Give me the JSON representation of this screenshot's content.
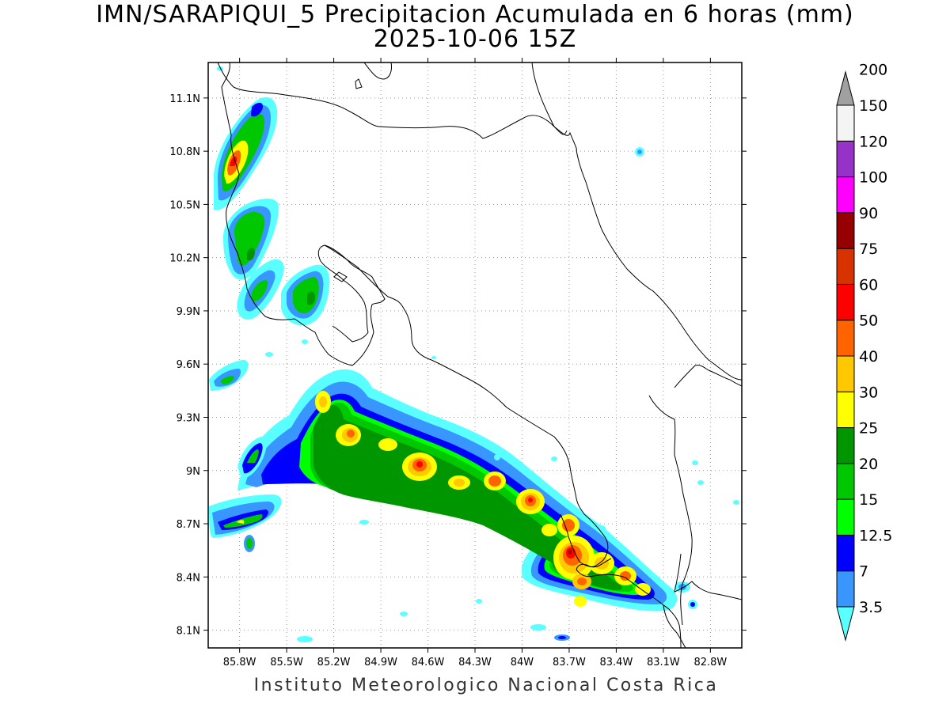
{
  "title": "IMN/SARAPIQUI_5 Precipitacion Acumulada en 6 horas (mm)",
  "date": "2025-10-06 15Z",
  "footer": "Instituto Meteorologico Nacional Costa Rica",
  "map": {
    "lon_range": [
      -86.0,
      -82.6
    ],
    "lat_range": [
      8.0,
      11.3
    ],
    "lat_ticks": [
      "11.1N",
      "10.8N",
      "10.5N",
      "10.2N",
      "9.9N",
      "9.6N",
      "9.3N",
      "9N",
      "8.7N",
      "8.4N",
      "8.1N"
    ],
    "lat_tick_values": [
      11.1,
      10.8,
      10.5,
      10.2,
      9.9,
      9.6,
      9.3,
      9.0,
      8.7,
      8.4,
      8.1
    ],
    "lon_ticks": [
      "85.8W",
      "85.5W",
      "85.2W",
      "84.9W",
      "84.6W",
      "84.3W",
      "84W",
      "83.7W",
      "83.4W",
      "83.1W",
      "82.8W"
    ],
    "lon_tick_values": [
      -85.8,
      -85.5,
      -85.2,
      -84.9,
      -84.6,
      -84.3,
      -84.0,
      -83.7,
      -83.4,
      -83.1,
      -82.8
    ],
    "grid": true
  },
  "colorbar": {
    "labels": [
      "3.5",
      "7",
      "12.5",
      "15",
      "20",
      "25",
      "30",
      "40",
      "50",
      "60",
      "75",
      "90",
      "100",
      "120",
      "150",
      "200"
    ],
    "colors": [
      "#5affff",
      "#3a96ff",
      "#0000ff",
      "#00ff00",
      "#00c800",
      "#009600",
      "#ffff00",
      "#ffc800",
      "#ff6400",
      "#ff0000",
      "#d73200",
      "#960000",
      "#ff00ff",
      "#9632c8",
      "#f4f4f4",
      "#a0a0a0"
    ]
  },
  "levels": {
    "light_cyan": "#5affff",
    "medium_blue": "#3a96ff",
    "blue": "#0000ff",
    "lime": "#00ff00",
    "green": "#00c800",
    "dark_green": "#009600",
    "yellow": "#ffff00",
    "gold": "#ffc800",
    "orange": "#ff6400",
    "red": "#ff0000",
    "dark_red": "#960000"
  }
}
